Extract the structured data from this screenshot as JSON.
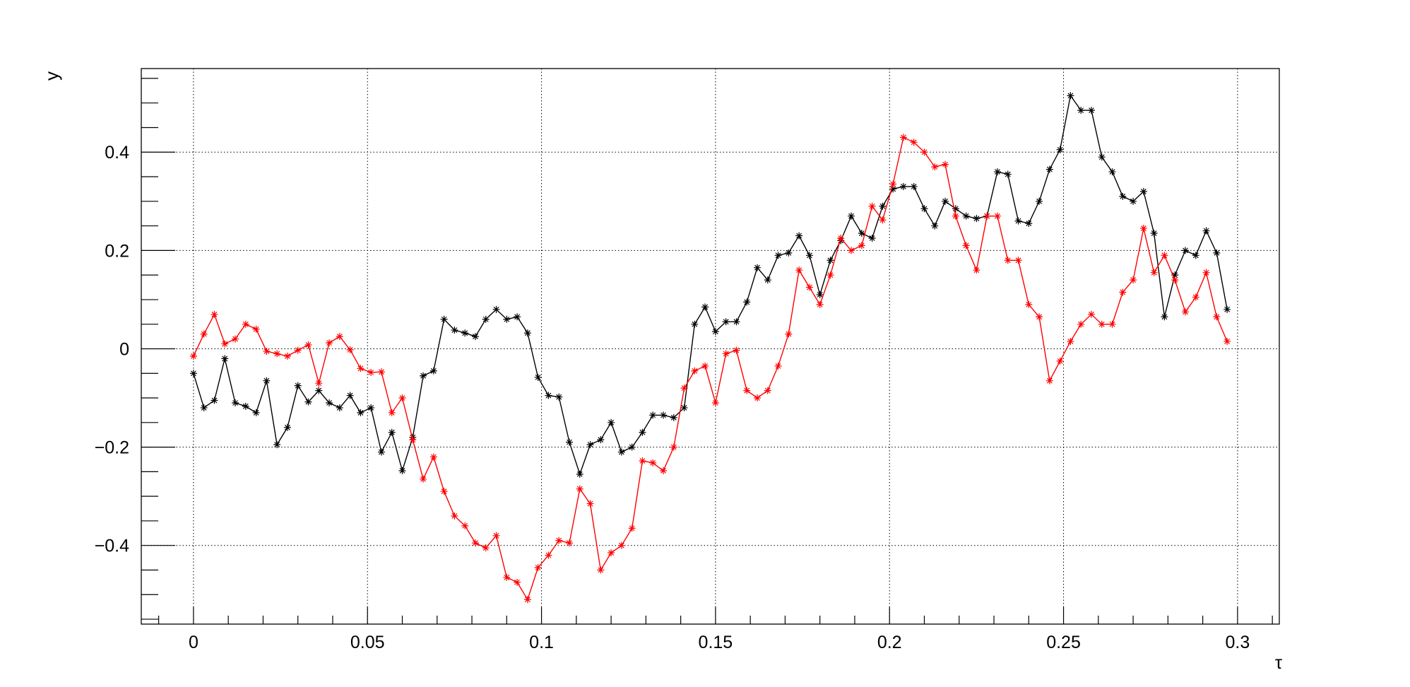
{
  "chart_data": {
    "type": "line",
    "title": "",
    "xlabel": "τ",
    "ylabel": "y",
    "xlim": [
      -0.015,
      0.312
    ],
    "ylim": [
      -0.56,
      0.57
    ],
    "grid": true,
    "xticks": [
      0,
      0.05,
      0.1,
      0.15,
      0.2,
      0.25,
      0.3
    ],
    "xtick_labels": [
      "0",
      "0.05",
      "0.1",
      "0.15",
      "0.2",
      "0.25",
      "0.3"
    ],
    "yticks": [
      -0.4,
      -0.2,
      0,
      0.2,
      0.4
    ],
    "ytick_labels": [
      "−0.4",
      "−0.2",
      "0",
      "0.2",
      "0.4"
    ],
    "x_step": 0.003,
    "marker": "star",
    "series": [
      {
        "color": "#000000",
        "values": [
          -0.05,
          -0.12,
          -0.105,
          -0.02,
          -0.11,
          -0.117,
          -0.13,
          -0.065,
          -0.195,
          -0.16,
          -0.075,
          -0.108,
          -0.085,
          -0.11,
          -0.12,
          -0.095,
          -0.13,
          -0.12,
          -0.21,
          -0.17,
          -0.248,
          -0.18,
          -0.055,
          -0.045,
          0.06,
          0.038,
          0.032,
          0.025,
          0.06,
          0.08,
          0.06,
          0.065,
          0.032,
          -0.058,
          -0.095,
          -0.098,
          -0.19,
          -0.255,
          -0.195,
          -0.185,
          -0.15,
          -0.21,
          -0.2,
          -0.17,
          -0.135,
          -0.135,
          -0.14,
          -0.12,
          0.05,
          0.085,
          0.035,
          0.055,
          0.055,
          0.095,
          0.165,
          0.14,
          0.19,
          0.195,
          0.23,
          0.19,
          0.11,
          0.18,
          0.22,
          0.27,
          0.235,
          0.225,
          0.29,
          0.325,
          0.33,
          0.33,
          0.285,
          0.25,
          0.3,
          0.285,
          0.27,
          0.265,
          0.27,
          0.36,
          0.355,
          0.26,
          0.255,
          0.3,
          0.365,
          0.405,
          0.515,
          0.485,
          0.485,
          0.39,
          0.36,
          0.31,
          0.3,
          0.32,
          0.235,
          0.065,
          0.15,
          0.2,
          0.19,
          0.24,
          0.195,
          0.08
        ]
      },
      {
        "color": "#ff0000",
        "values": [
          -0.015,
          0.03,
          0.07,
          0.01,
          0.02,
          0.05,
          0.04,
          -0.005,
          -0.01,
          -0.015,
          -0.003,
          0.008,
          -0.07,
          0.012,
          0.025,
          -0.002,
          -0.04,
          -0.048,
          -0.047,
          -0.13,
          -0.1,
          -0.185,
          -0.265,
          -0.22,
          -0.29,
          -0.34,
          -0.36,
          -0.395,
          -0.405,
          -0.38,
          -0.465,
          -0.475,
          -0.51,
          -0.445,
          -0.42,
          -0.39,
          -0.395,
          -0.285,
          -0.315,
          -0.45,
          -0.415,
          -0.4,
          -0.365,
          -0.228,
          -0.232,
          -0.248,
          -0.2,
          -0.08,
          -0.045,
          -0.035,
          -0.11,
          -0.01,
          -0.003,
          -0.085,
          -0.1,
          -0.085,
          -0.035,
          0.03,
          0.16,
          0.125,
          0.09,
          0.15,
          0.225,
          0.2,
          0.21,
          0.29,
          0.262,
          0.335,
          0.43,
          0.42,
          0.4,
          0.37,
          0.375,
          0.27,
          0.21,
          0.16,
          0.27,
          0.27,
          0.18,
          0.18,
          0.09,
          0.065,
          -0.065,
          -0.025,
          0.015,
          0.05,
          0.07,
          0.05,
          0.05,
          0.115,
          0.14,
          0.245,
          0.155,
          0.19,
          0.14,
          0.075,
          0.105,
          0.155,
          0.065,
          0.015
        ]
      }
    ]
  }
}
